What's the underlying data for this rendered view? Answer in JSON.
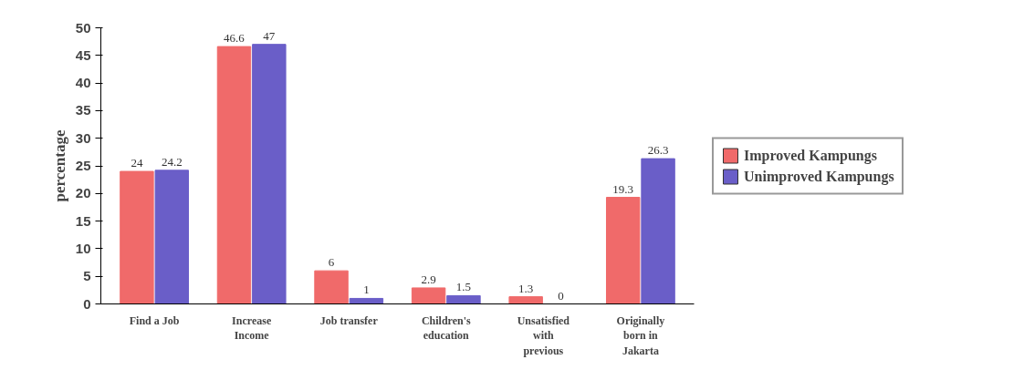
{
  "chart_data": {
    "type": "bar",
    "ylabel": "percentage",
    "categories": [
      "Find a Job",
      "Increase Income",
      "Job transfer",
      "Children's education",
      "Unsatisfied with previous",
      "Originally born in Jakarta"
    ],
    "series": [
      {
        "name": "Improved Kampungs",
        "color": "#f06a6a",
        "values": [
          24,
          46.6,
          6,
          2.9,
          1.3,
          19.3
        ]
      },
      {
        "name": "Unimproved Kampungs",
        "color": "#6a5ec8",
        "values": [
          24.2,
          47,
          1,
          1.5,
          0,
          26.3
        ]
      }
    ],
    "ylim": [
      0,
      50
    ],
    "yticks": [
      0,
      5,
      10,
      15,
      20,
      25,
      30,
      35,
      40,
      45,
      50
    ],
    "data_labels": true,
    "grid": false,
    "legend": "right"
  }
}
